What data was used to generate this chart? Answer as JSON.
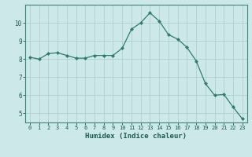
{
  "x": [
    0,
    1,
    2,
    3,
    4,
    5,
    6,
    7,
    8,
    9,
    10,
    11,
    12,
    13,
    14,
    15,
    16,
    17,
    18,
    19,
    20,
    21,
    22,
    23
  ],
  "y": [
    8.1,
    8.0,
    8.3,
    8.35,
    8.2,
    8.05,
    8.05,
    8.2,
    8.2,
    8.2,
    8.6,
    9.65,
    10.0,
    10.55,
    10.1,
    9.35,
    9.1,
    8.65,
    7.9,
    6.65,
    6.0,
    6.05,
    5.35,
    4.7
  ],
  "line_color": "#2e7d6e",
  "marker": "D",
  "marker_size": 2.0,
  "bg_color": "#cce8e8",
  "grid_color": "#b0d0d0",
  "xlabel": "Humidex (Indice chaleur)",
  "ylim": [
    4.5,
    11.0
  ],
  "xlim": [
    -0.5,
    23.5
  ],
  "yticks": [
    5,
    6,
    7,
    8,
    9,
    10
  ],
  "xticks": [
    0,
    1,
    2,
    3,
    4,
    5,
    6,
    7,
    8,
    9,
    10,
    11,
    12,
    13,
    14,
    15,
    16,
    17,
    18,
    19,
    20,
    21,
    22,
    23
  ],
  "tick_color": "#1a5c50",
  "label_color": "#1a5c50",
  "spine_color": "#3a8878",
  "xlabel_fontsize": 6.5,
  "tick_fontsize_x": 5.0,
  "tick_fontsize_y": 5.5,
  "linewidth": 0.9
}
